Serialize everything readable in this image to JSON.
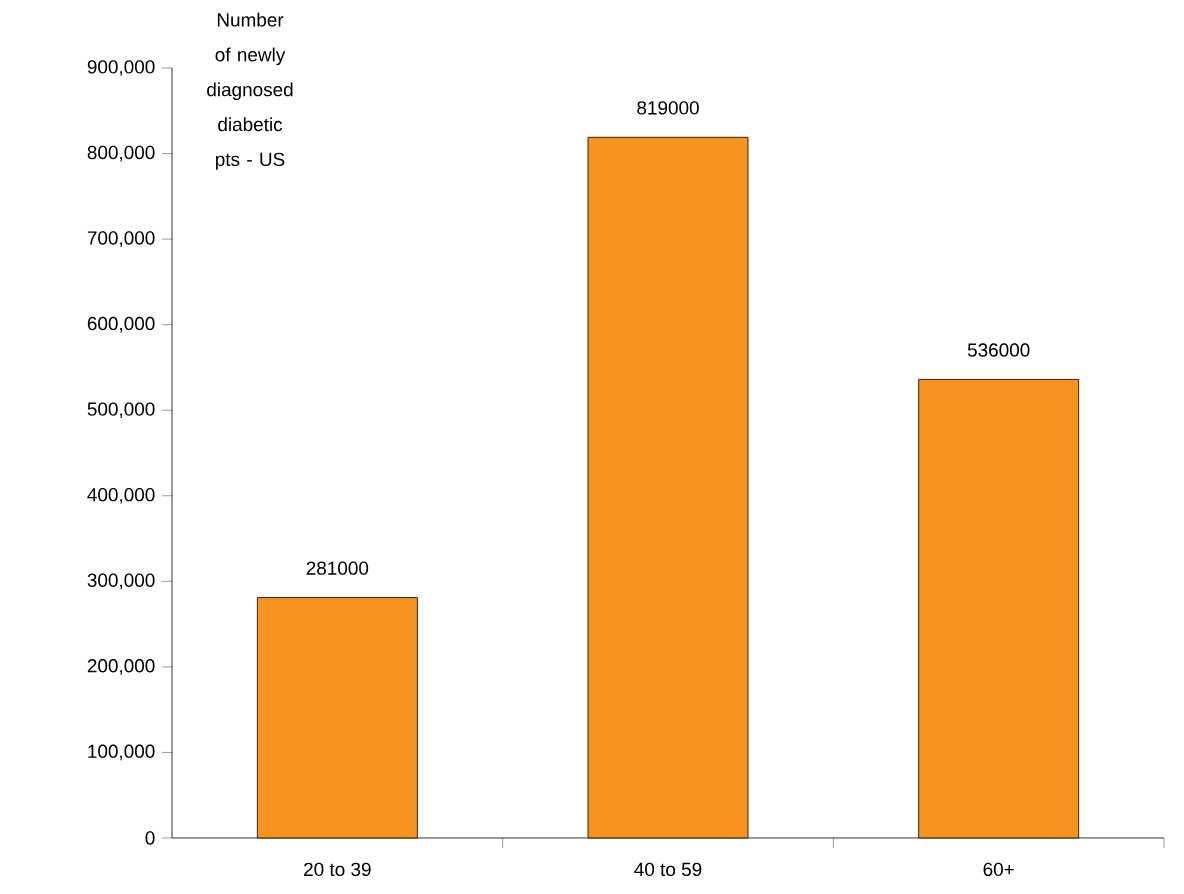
{
  "chart_data": {
    "type": "bar",
    "title": "Number of newly diagnosed diabetic pts - US",
    "categories": [
      "20 to 39",
      "40 to 59",
      "60+"
    ],
    "values": [
      281000,
      819000,
      536000
    ],
    "value_labels": [
      "281000",
      "819000",
      "536000"
    ],
    "color": "#f7931e",
    "ylim": [
      0,
      900000
    ],
    "yticks": [
      {
        "value": 0,
        "label": "0"
      },
      {
        "value": 100000,
        "label": "100,000"
      },
      {
        "value": 200000,
        "label": "200,000"
      },
      {
        "value": 300000,
        "label": "300,000"
      },
      {
        "value": 400000,
        "label": "400,000"
      },
      {
        "value": 500000,
        "label": "500,000"
      },
      {
        "value": 600000,
        "label": "600,000"
      },
      {
        "value": 700000,
        "label": "700,000"
      },
      {
        "value": 800000,
        "label": "800,000"
      },
      {
        "value": 900000,
        "label": "900,000"
      }
    ],
    "grid": false
  }
}
